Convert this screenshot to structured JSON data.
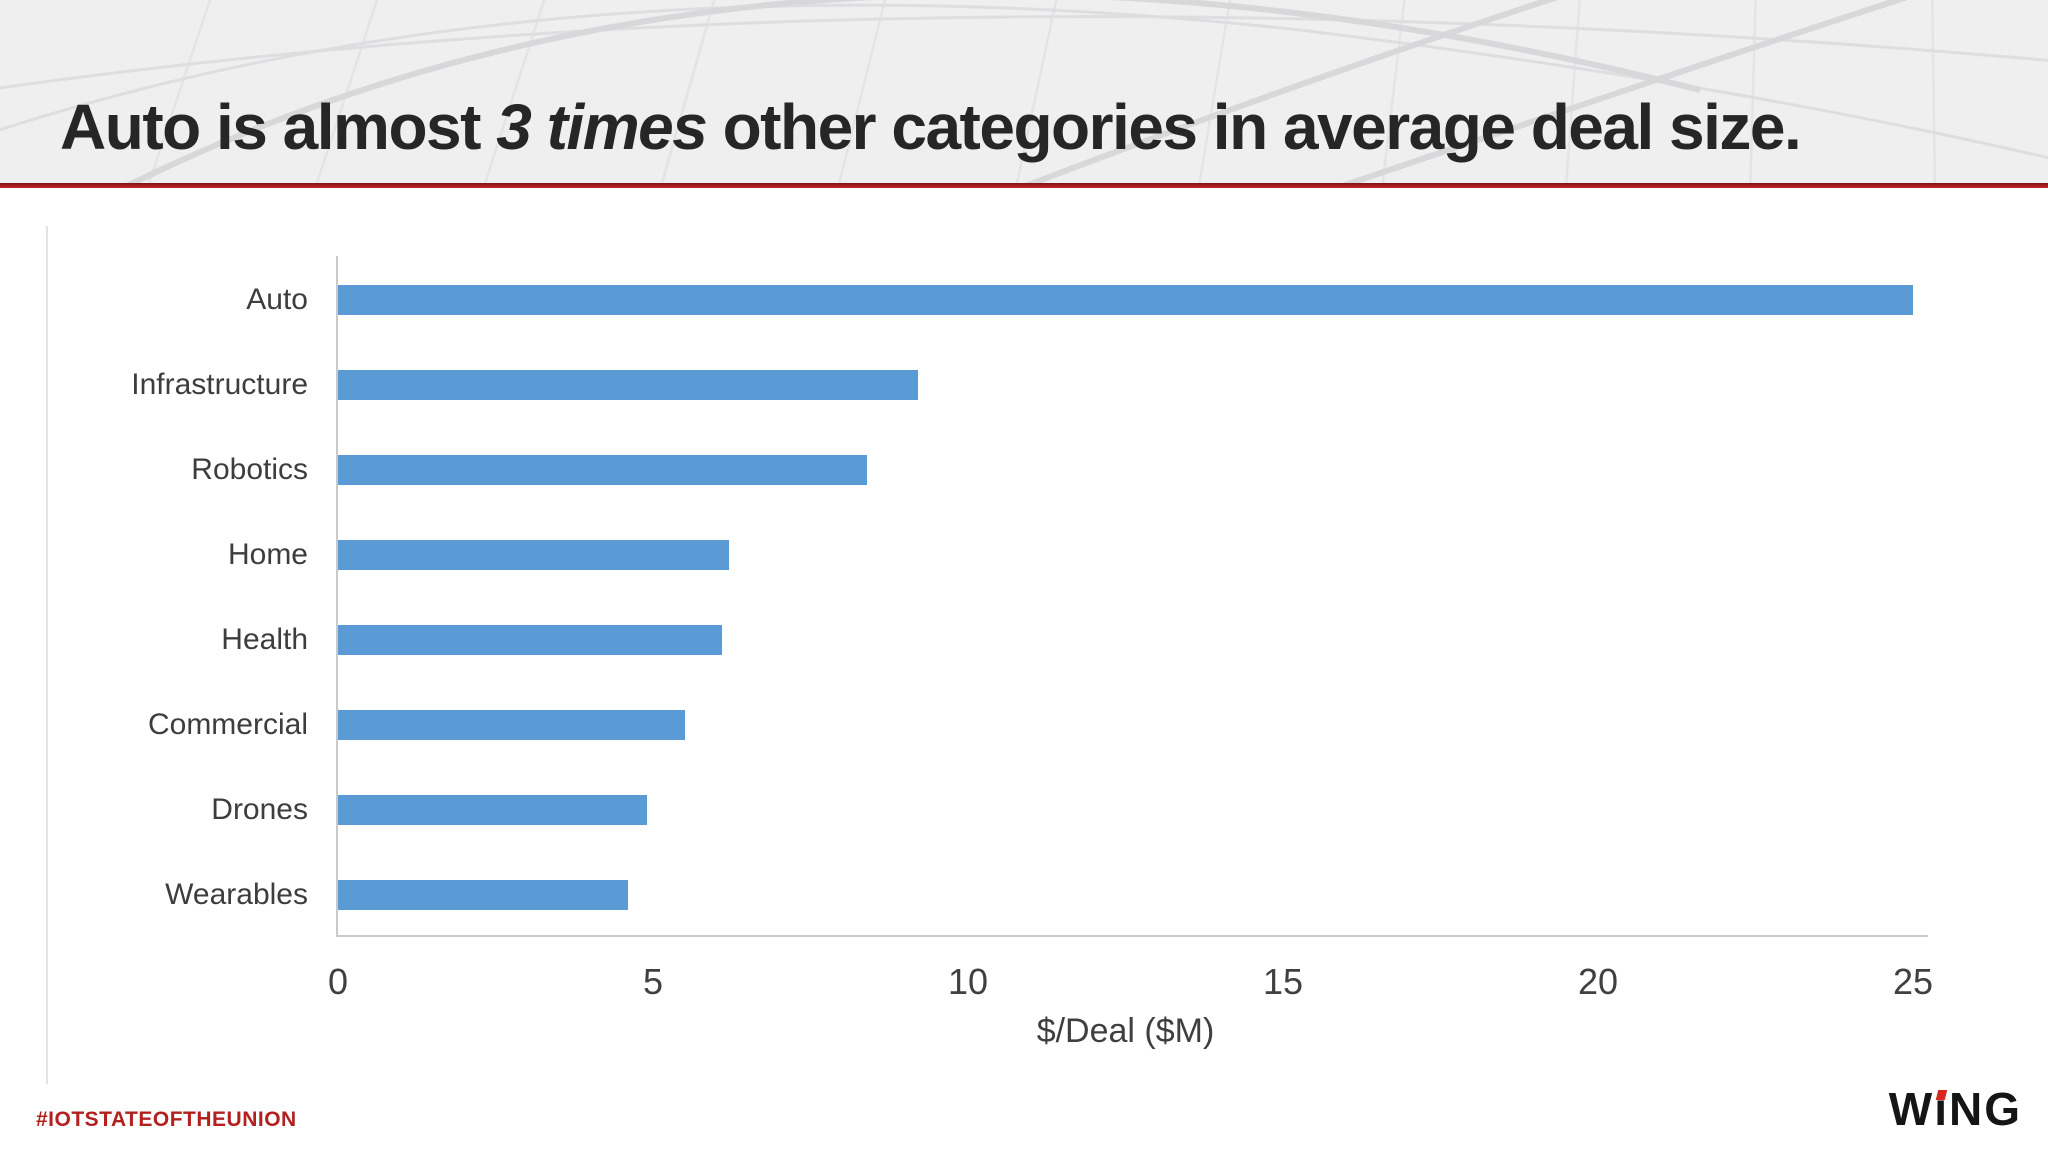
{
  "slide": {
    "title": {
      "part1": "Auto is almost",
      "part2_italic": "3 times",
      "part3": "other categories in average deal size."
    },
    "footer": {
      "hashtag": "#IOTSTATEOFTHEUNION",
      "logo_text": "WiNG",
      "logo_letters": [
        "W",
        "ı",
        "N",
        "G"
      ]
    },
    "colors": {
      "bar_blue": "#5B9BD5",
      "accent_red": "#A81D21",
      "hashtag_red": "#B2201F",
      "title_text": "#262626",
      "axis_text": "#404040",
      "axis_line": "#C9C9C9",
      "header_bg": "#EFEFF0"
    }
  },
  "chart_data": {
    "type": "bar",
    "orientation": "horizontal",
    "categories": [
      "Auto",
      "Infrastructure",
      "Robotics",
      "Home",
      "Health",
      "Commercial",
      "Drones",
      "Wearables"
    ],
    "values": [
      25.0,
      9.2,
      8.4,
      6.2,
      6.1,
      5.5,
      4.9,
      4.6
    ],
    "title": "",
    "xlabel": "$/Deal ($M)",
    "ylabel": "",
    "xlim": [
      0,
      25
    ],
    "xticks": [
      0,
      5,
      10,
      15,
      20,
      25
    ],
    "grid": false,
    "legend": false,
    "bar_color": "#5B9BD5"
  }
}
